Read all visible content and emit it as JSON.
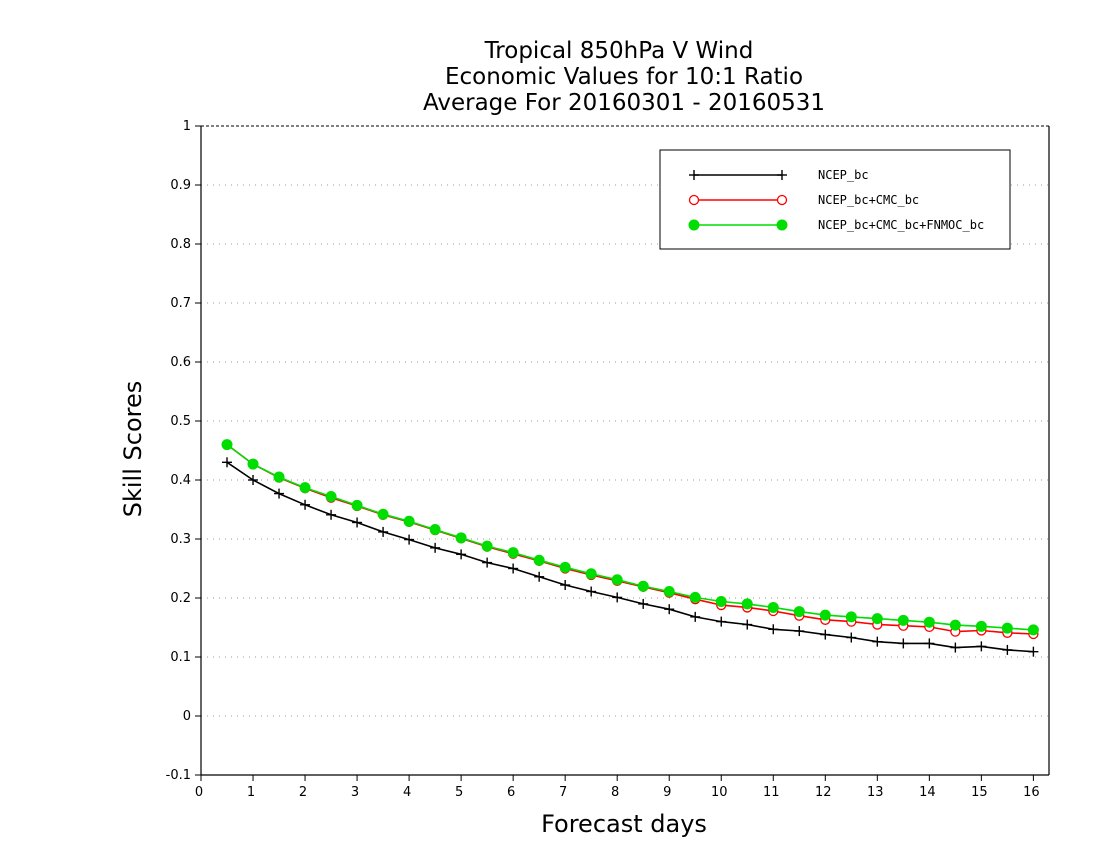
{
  "chart_data": {
    "type": "line",
    "title_lines": [
      "Tropical 850hPa V Wind",
      "Economic Values for 10:1 Ratio",
      "Average For 20160301 - 20160531"
    ],
    "xlabel": "Forecast days",
    "ylabel": "Skill Scores",
    "xlim": [
      0,
      16.3
    ],
    "ylim": [
      -0.1,
      1
    ],
    "x_ticks": [
      "0",
      "1",
      "2",
      "3",
      "4",
      "5",
      "6",
      "7",
      "8",
      "9",
      "10",
      "11",
      "12",
      "13",
      "14",
      "15",
      "16"
    ],
    "y_ticks": [
      "-0.1",
      "0",
      "0.1",
      "0.2",
      "0.3",
      "0.4",
      "0.5",
      "0.6",
      "0.7",
      "0.8",
      "0.9",
      "1"
    ],
    "grid": true,
    "legend_position": "top-right",
    "x": [
      0.5,
      1,
      1.5,
      2,
      2.5,
      3,
      3.5,
      4,
      4.5,
      5,
      5.5,
      6,
      6.5,
      7,
      7.5,
      8,
      8.5,
      9,
      9.5,
      10,
      10.5,
      11,
      11.5,
      12,
      12.5,
      13,
      13.5,
      14,
      14.5,
      15,
      15.5,
      16
    ],
    "series": [
      {
        "name": "NCEP_bc",
        "color": "#000000",
        "marker": "plus",
        "values": [
          0.43,
          0.4,
          0.377,
          0.358,
          0.341,
          0.328,
          0.312,
          0.299,
          0.285,
          0.274,
          0.26,
          0.25,
          0.236,
          0.222,
          0.211,
          0.201,
          0.19,
          0.181,
          0.168,
          0.16,
          0.155,
          0.147,
          0.144,
          0.138,
          0.133,
          0.126,
          0.123,
          0.123,
          0.116,
          0.118,
          0.112,
          0.109
        ]
      },
      {
        "name": "NCEP_bc+CMC_bc",
        "color": "#ff0000",
        "marker": "open-circle",
        "values": [
          0.46,
          0.427,
          0.404,
          0.386,
          0.37,
          0.356,
          0.341,
          0.329,
          0.315,
          0.301,
          0.287,
          0.275,
          0.263,
          0.25,
          0.239,
          0.229,
          0.219,
          0.209,
          0.198,
          0.188,
          0.184,
          0.178,
          0.17,
          0.163,
          0.16,
          0.155,
          0.153,
          0.151,
          0.143,
          0.145,
          0.141,
          0.139
        ]
      },
      {
        "name": "NCEP_bc+CMC_bc+FNMOC_bc",
        "color": "#00dd00",
        "marker": "filled-circle",
        "values": [
          0.46,
          0.427,
          0.405,
          0.387,
          0.372,
          0.357,
          0.342,
          0.33,
          0.316,
          0.302,
          0.288,
          0.277,
          0.264,
          0.252,
          0.241,
          0.231,
          0.22,
          0.211,
          0.201,
          0.194,
          0.19,
          0.184,
          0.177,
          0.171,
          0.168,
          0.165,
          0.162,
          0.159,
          0.154,
          0.152,
          0.149,
          0.146
        ]
      }
    ]
  }
}
